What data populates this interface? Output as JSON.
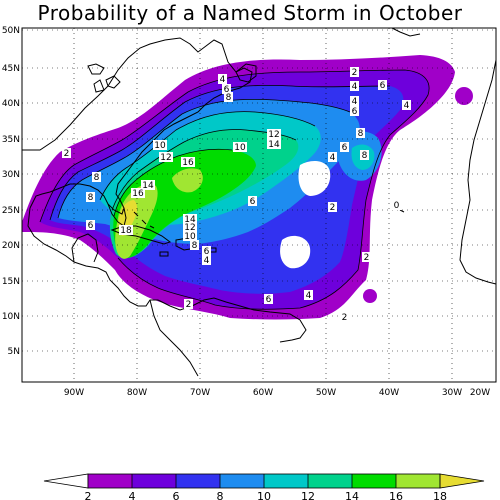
{
  "title": "Probability of a Named Storm in October",
  "lat_labels": [
    "50N",
    "45N",
    "40N",
    "35N",
    "30N",
    "25N",
    "20N",
    "15N",
    "10N",
    "5N"
  ],
  "lon_labels": [
    "90W",
    "80W",
    "70W",
    "60W",
    "50W",
    "40W",
    "30W",
    "20W"
  ],
  "colorbar": {
    "labels": [
      "2",
      "4",
      "6",
      "8",
      "10",
      "12",
      "14",
      "16",
      "18"
    ],
    "colors": [
      "#a000c8",
      "#6e00dc",
      "#3232f0",
      "#1e8cf0",
      "#00c8c8",
      "#00d28c",
      "#00dc00",
      "#a0e632",
      "#e6dc32"
    ]
  },
  "contour_labels": [
    {
      "text": "2"
    },
    {
      "text": "4"
    },
    {
      "text": "6"
    },
    {
      "text": "4"
    },
    {
      "text": "6"
    },
    {
      "text": "8"
    },
    {
      "text": "4"
    },
    {
      "text": "4"
    },
    {
      "text": "6"
    },
    {
      "text": "8"
    },
    {
      "text": "8"
    },
    {
      "text": "6"
    },
    {
      "text": "4"
    },
    {
      "text": "2"
    },
    {
      "text": "0"
    },
    {
      "text": "6"
    },
    {
      "text": "8"
    },
    {
      "text": "10"
    },
    {
      "text": "12"
    },
    {
      "text": "10"
    },
    {
      "text": "12"
    },
    {
      "text": "14"
    },
    {
      "text": "16"
    },
    {
      "text": "14"
    },
    {
      "text": "16"
    },
    {
      "text": "18"
    },
    {
      "text": "8"
    },
    {
      "text": "6"
    },
    {
      "text": "14"
    },
    {
      "text": "12"
    },
    {
      "text": "10"
    },
    {
      "text": "8"
    },
    {
      "text": "6"
    },
    {
      "text": "4"
    },
    {
      "text": "2"
    },
    {
      "text": "6"
    },
    {
      "text": "4"
    },
    {
      "text": "2"
    },
    {
      "text": "2"
    },
    {
      "text": "2"
    }
  ]
}
